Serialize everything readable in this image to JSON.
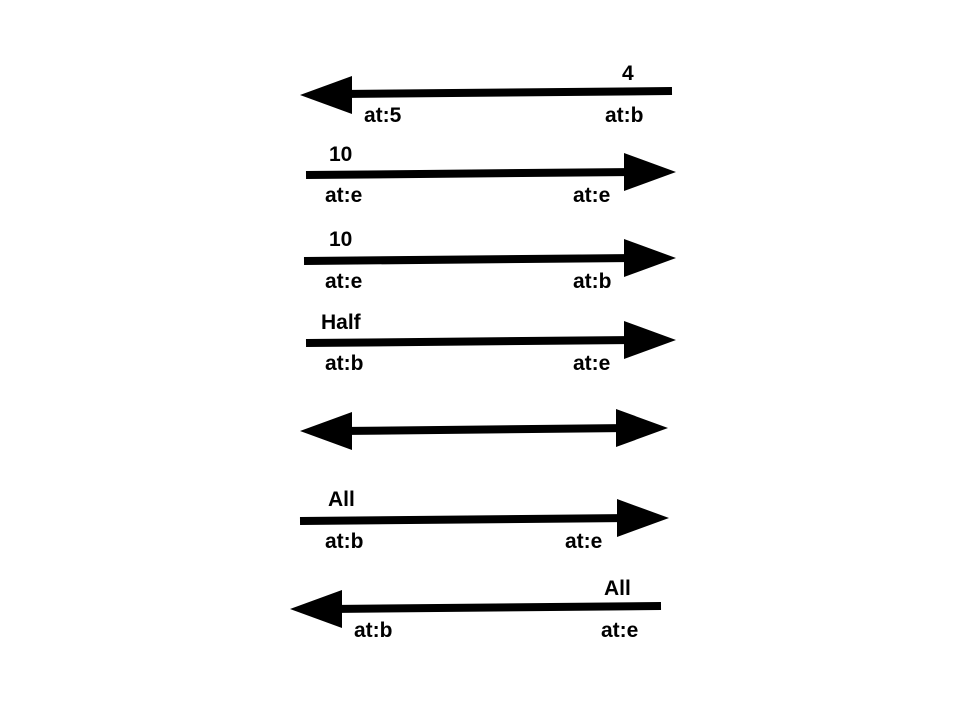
{
  "arrows": [
    {
      "head": "left",
      "amount": "4",
      "start_label": "at:5",
      "end_label": "at:b"
    },
    {
      "head": "right",
      "amount": "10",
      "start_label": "at:e",
      "end_label": "at:e"
    },
    {
      "head": "right",
      "amount": "10",
      "start_label": "at:e",
      "end_label": "at:b"
    },
    {
      "head": "right",
      "amount": "Half",
      "start_label": "at:b",
      "end_label": "at:e"
    },
    {
      "head": "both",
      "amount": "",
      "start_label": "",
      "end_label": ""
    },
    {
      "head": "right",
      "amount": "All",
      "start_label": "at:b",
      "end_label": "at:e"
    },
    {
      "head": "left",
      "amount": "All",
      "start_label": "at:b",
      "end_label": "at:e"
    }
  ]
}
